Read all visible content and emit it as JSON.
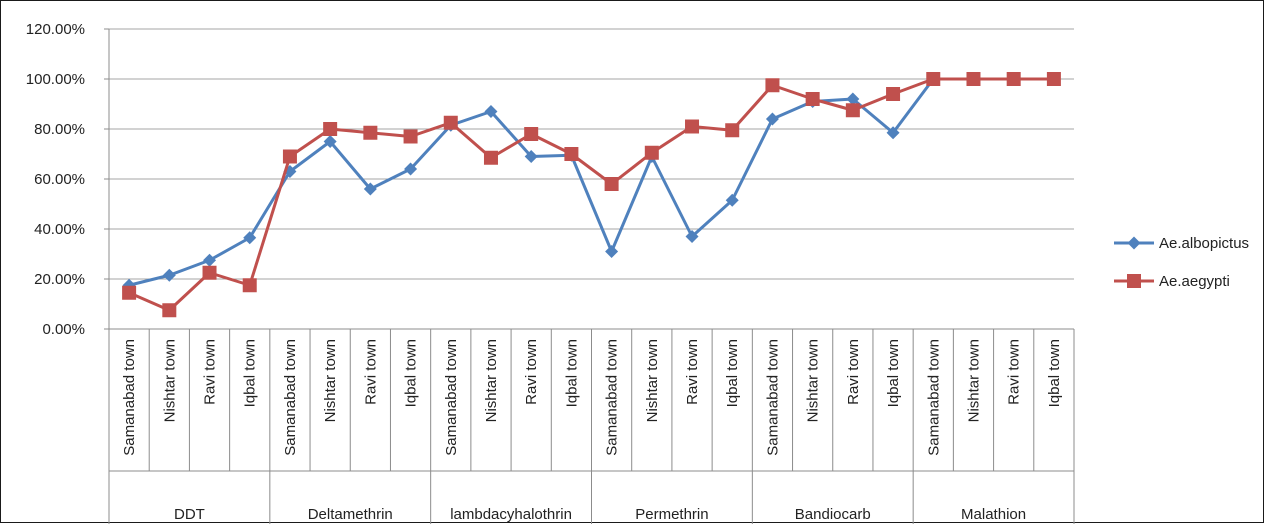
{
  "chart_data": {
    "type": "line",
    "y_ticks": [
      "0.00%",
      "20.00%",
      "40.00%",
      "60.00%",
      "80.00%",
      "100.00%",
      "120.00%"
    ],
    "ylim": [
      0,
      120
    ],
    "grid": true,
    "legend_position": "right",
    "groups": [
      {
        "name": "DDT",
        "towns": [
          "Samanabad town",
          "Nishtar town",
          "Ravi town",
          "Iqbal town"
        ]
      },
      {
        "name": "Deltamethrin",
        "towns": [
          "Samanabad town",
          "Nishtar town",
          "Ravi town",
          "Iqbal town"
        ]
      },
      {
        "name": "lambdacyhalothrin",
        "towns": [
          "Samanabad town",
          "Nishtar town",
          "Ravi town",
          "Iqbal town"
        ]
      },
      {
        "name": "Permethrin",
        "towns": [
          "Samanabad town",
          "Nishtar town",
          "Ravi town",
          "Iqbal town"
        ]
      },
      {
        "name": "Bandiocarb",
        "towns": [
          "Samanabad town",
          "Nishtar town",
          "Ravi town",
          "Iqbal town"
        ]
      },
      {
        "name": "Malathion",
        "towns": [
          "Samanabad town",
          "Nishtar town",
          "Ravi town",
          "Iqbal town"
        ]
      }
    ],
    "series": [
      {
        "name": "Ae.albopictus",
        "color": "#4f81bd",
        "marker": "diamond",
        "values": [
          17.5,
          21.5,
          27.5,
          36.5,
          63,
          75,
          56,
          64,
          81.5,
          87,
          69,
          69.5,
          31,
          69,
          37,
          51.5,
          84,
          91,
          92,
          78.5,
          100,
          100,
          100,
          100
        ]
      },
      {
        "name": "Ae.aegypti",
        "color": "#c0504d",
        "marker": "square",
        "values": [
          14.5,
          7.5,
          22.5,
          17.5,
          69,
          80,
          78.5,
          77,
          82.5,
          68.5,
          78,
          70,
          58,
          70.5,
          81,
          79.5,
          97.5,
          92,
          87.5,
          94,
          100,
          100,
          100,
          100
        ]
      }
    ]
  }
}
